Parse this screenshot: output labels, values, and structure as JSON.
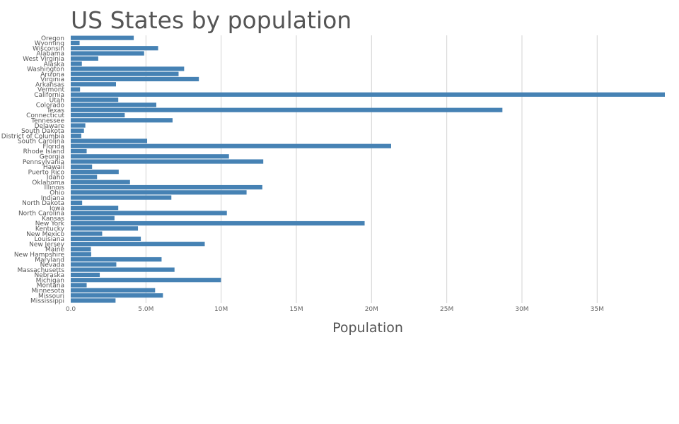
{
  "chart_data": {
    "type": "bar",
    "orientation": "horizontal",
    "title": "US States by population",
    "xlabel": "Population",
    "ylabel": "",
    "xlim": [
      0,
      39500000
    ],
    "grid": true,
    "bar_color": "#4682b4",
    "x_ticks": [
      {
        "value": 0,
        "label": "0.0"
      },
      {
        "value": 5000000,
        "label": "5.0M"
      },
      {
        "value": 10000000,
        "label": "10M"
      },
      {
        "value": 15000000,
        "label": "15M"
      },
      {
        "value": 20000000,
        "label": "20M"
      },
      {
        "value": 25000000,
        "label": "25M"
      },
      {
        "value": 30000000,
        "label": "30M"
      },
      {
        "value": 35000000,
        "label": "35M"
      }
    ],
    "categories": [
      "Oregon",
      "Wyoming",
      "Wisconsin",
      "Alabama",
      "West Virginia",
      "Alaska",
      "Washington",
      "Arizona",
      "Virginia",
      "Arkansas",
      "Vermont",
      "California",
      "Utah",
      "Colorado",
      "Texas",
      "Connecticut",
      "Tennessee",
      "Delaware",
      "South Dakota",
      "District of Columbia",
      "South Carolina",
      "Florida",
      "Rhode Island",
      "Georgia",
      "Pennsylvania",
      "Hawaii",
      "Puerto Rico",
      "Idaho",
      "Oklahoma",
      "Illinois",
      "Ohio",
      "Indiana",
      "North Dakota",
      "Iowa",
      "North Carolina",
      "Kansas",
      "New York",
      "Kentucky",
      "New Mexico",
      "Louisiana",
      "New Jersey",
      "Maine",
      "New Hampshire",
      "Maryland",
      "Nevada",
      "Massachusetts",
      "Nebraska",
      "Michigan",
      "Montana",
      "Minnesota",
      "Missouri",
      "Mississippi"
    ],
    "values": [
      4190000,
      590000,
      5810000,
      4880000,
      1830000,
      740000,
      7540000,
      7170000,
      8520000,
      3010000,
      620000,
      39500000,
      3160000,
      5690000,
      28700000,
      3590000,
      6770000,
      970000,
      880000,
      700000,
      5080000,
      21300000,
      1060000,
      10520000,
      12800000,
      1420000,
      3190000,
      1750000,
      3940000,
      12740000,
      11690000,
      6690000,
      760000,
      3160000,
      10380000,
      2910000,
      19540000,
      4470000,
      2090000,
      4660000,
      8910000,
      1340000,
      1360000,
      6040000,
      3030000,
      6900000,
      1930000,
      9990000,
      1060000,
      5610000,
      6130000,
      2980000
    ]
  }
}
